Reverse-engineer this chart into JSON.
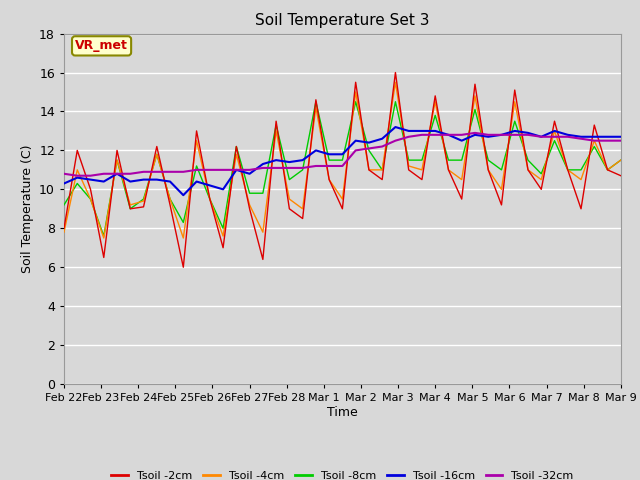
{
  "title": "Soil Temperature Set 3",
  "xlabel": "Time",
  "ylabel": "Soil Temperature (C)",
  "ylim": [
    0,
    18
  ],
  "yticks": [
    0,
    2,
    4,
    6,
    8,
    10,
    12,
    14,
    16,
    18
  ],
  "fig_bg": "#d8d8d8",
  "plot_bg": "#d8d8d8",
  "grid_color": "#ffffff",
  "annotation_text": "VR_met",
  "annotation_bg": "#ffffcc",
  "annotation_border": "#888800",
  "colors": {
    "Tsoil -2cm": "#dd0000",
    "Tsoil -4cm": "#ff8800",
    "Tsoil -8cm": "#00cc00",
    "Tsoil -16cm": "#0000dd",
    "Tsoil -32cm": "#aa00aa"
  },
  "x_labels": [
    "Feb 22",
    "Feb 23",
    "Feb 24",
    "Feb 25",
    "Feb 26",
    "Feb 27",
    "Feb 28",
    "Mar 1",
    "Mar 2",
    "Mar 3",
    "Mar 4",
    "Mar 5",
    "Mar 6",
    "Mar 7",
    "Mar 8",
    "Mar 9"
  ],
  "Tsoil_2cm": [
    8.0,
    12.0,
    10.0,
    6.5,
    12.0,
    9.0,
    9.1,
    12.2,
    9.2,
    6.0,
    13.0,
    9.5,
    7.0,
    12.2,
    9.0,
    6.4,
    13.5,
    9.0,
    8.5,
    14.6,
    10.5,
    9.0,
    15.5,
    11.0,
    10.5,
    16.0,
    11.0,
    10.5,
    14.8,
    11.0,
    9.5,
    15.4,
    11.0,
    9.2,
    15.1,
    11.0,
    10.0,
    13.5,
    11.0,
    9.0,
    13.3,
    11.0,
    10.7
  ],
  "Tsoil_4cm": [
    7.8,
    11.0,
    9.5,
    7.5,
    11.5,
    9.2,
    9.4,
    11.8,
    9.5,
    7.5,
    12.5,
    9.5,
    7.6,
    11.8,
    9.2,
    7.8,
    13.0,
    9.5,
    9.0,
    14.2,
    10.5,
    9.5,
    15.0,
    11.0,
    11.0,
    15.5,
    11.2,
    11.0,
    14.5,
    11.0,
    10.5,
    14.8,
    11.0,
    10.0,
    14.5,
    11.0,
    10.5,
    13.0,
    11.0,
    10.5,
    12.5,
    11.0,
    11.5
  ],
  "Tsoil_8cm": [
    9.2,
    10.3,
    9.5,
    7.6,
    11.5,
    9.0,
    9.5,
    11.8,
    9.5,
    8.3,
    11.2,
    9.5,
    8.0,
    12.2,
    9.8,
    9.8,
    13.3,
    10.5,
    11.0,
    14.5,
    11.5,
    11.5,
    14.5,
    12.0,
    11.0,
    14.5,
    11.5,
    11.5,
    13.8,
    11.5,
    11.5,
    14.1,
    11.5,
    11.0,
    13.5,
    11.5,
    10.8,
    12.5,
    11.0,
    11.0,
    12.2,
    11.0,
    11.5
  ],
  "Tsoil_16cm": [
    10.3,
    10.6,
    10.5,
    10.4,
    10.8,
    10.4,
    10.5,
    10.5,
    10.4,
    9.7,
    10.4,
    10.2,
    10.0,
    11.0,
    10.8,
    11.3,
    11.5,
    11.4,
    11.5,
    12.0,
    11.8,
    11.8,
    12.5,
    12.4,
    12.6,
    13.2,
    13.0,
    13.0,
    13.0,
    12.8,
    12.5,
    12.8,
    12.7,
    12.8,
    13.0,
    12.9,
    12.7,
    13.0,
    12.8,
    12.7,
    12.7,
    12.7,
    12.7
  ],
  "Tsoil_32cm": [
    10.8,
    10.7,
    10.7,
    10.8,
    10.8,
    10.8,
    10.9,
    10.9,
    10.9,
    10.9,
    11.0,
    11.0,
    11.0,
    11.0,
    11.0,
    11.1,
    11.1,
    11.1,
    11.1,
    11.2,
    11.2,
    11.2,
    12.0,
    12.1,
    12.2,
    12.5,
    12.7,
    12.8,
    12.8,
    12.8,
    12.8,
    12.9,
    12.8,
    12.8,
    12.8,
    12.8,
    12.7,
    12.7,
    12.7,
    12.6,
    12.5,
    12.5,
    12.5
  ]
}
